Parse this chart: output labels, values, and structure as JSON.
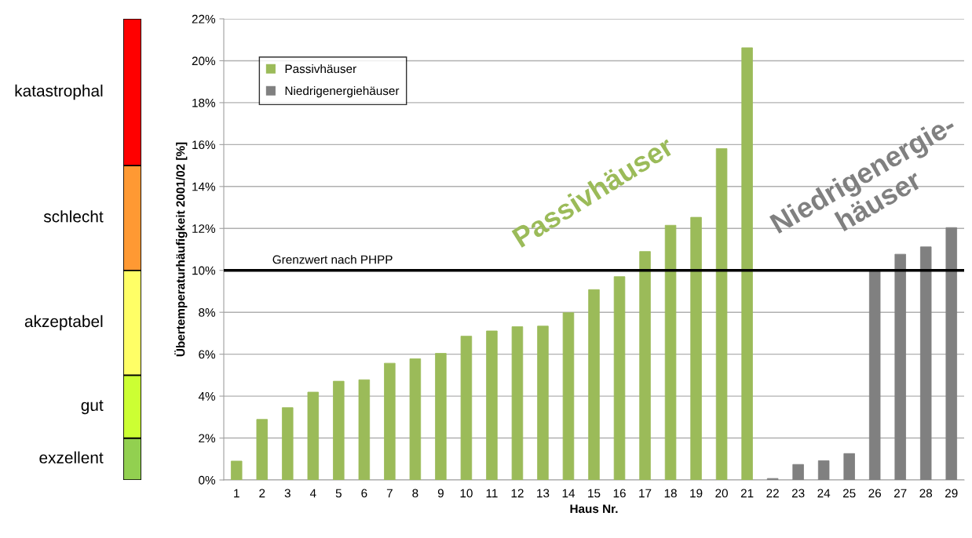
{
  "chart_data": [
    {
      "type": "bar",
      "stacked": true,
      "categories": [
        null
      ],
      "ylim": [
        0,
        22
      ],
      "tick_labels": false,
      "series": [
        {
          "name": "exzellent",
          "color": "#92d050",
          "values": [
            2
          ]
        },
        {
          "name": "gut",
          "color": "#ccff33",
          "values": [
            3
          ]
        },
        {
          "name": "akzeptabel",
          "color": "#ffff66",
          "values": [
            5
          ]
        },
        {
          "name": "schlecht",
          "color": "#ff9933",
          "values": [
            5
          ]
        },
        {
          "name": "katastrophal",
          "color": "#ff0000",
          "values": [
            7
          ]
        }
      ]
    },
    {
      "type": "bar",
      "xlabel": "Haus Nr.",
      "ylabel": "Übertemperaturhäufigkeit 2001/02 [%]",
      "categories": [
        "1",
        "2",
        "3",
        "4",
        "5",
        "6",
        "7",
        "8",
        "9",
        "10",
        "11",
        "12",
        "13",
        "14",
        "15",
        "16",
        "17",
        "18",
        "19",
        "20",
        "21",
        "22",
        "23",
        "24",
        "25",
        "26",
        "27",
        "28",
        "29"
      ],
      "series": [
        {
          "name": "Passivhäuser",
          "color": "#9bbb59",
          "values": [
            0.9,
            2.89,
            3.45,
            4.19,
            4.71,
            4.78,
            5.57,
            5.78,
            6.04,
            6.86,
            7.11,
            7.31,
            7.34,
            7.98,
            9.08,
            9.7,
            10.9,
            12.15,
            12.53,
            15.81,
            20.62,
            null,
            null,
            null,
            null,
            null,
            null,
            null,
            null
          ]
        },
        {
          "name": "Niedrigenergiehäuser",
          "color": "#808080",
          "values": [
            null,
            null,
            null,
            null,
            null,
            null,
            null,
            null,
            null,
            null,
            null,
            null,
            null,
            null,
            null,
            null,
            null,
            null,
            null,
            null,
            null,
            0.07,
            0.74,
            0.92,
            1.26,
            9.98,
            10.77,
            11.12,
            12.04
          ]
        }
      ],
      "ylim": [
        0,
        22
      ],
      "yticks": [
        {
          "value": 0,
          "label": "0%"
        },
        {
          "value": 2,
          "label": "2%"
        },
        {
          "value": 4,
          "label": "4%"
        },
        {
          "value": 6,
          "label": "6%"
        },
        {
          "value": 8,
          "label": "8%"
        },
        {
          "value": 10,
          "label": "10%"
        },
        {
          "value": 12,
          "label": "12%"
        },
        {
          "value": 14,
          "label": "14%"
        },
        {
          "value": 16,
          "label": "16%"
        },
        {
          "value": 18,
          "label": "18%"
        },
        {
          "value": 20,
          "label": "20%"
        },
        {
          "value": 22,
          "label": "22%"
        }
      ],
      "grid": "y",
      "legend": "top left",
      "ref_lines": [
        {
          "axis": "y",
          "value": 10,
          "label": "Grenzwert nach PHPP",
          "color": "#000000"
        }
      ],
      "annotations": [
        "Passivhäuser",
        "Niedrigenergie-\nhäuser"
      ]
    }
  ]
}
